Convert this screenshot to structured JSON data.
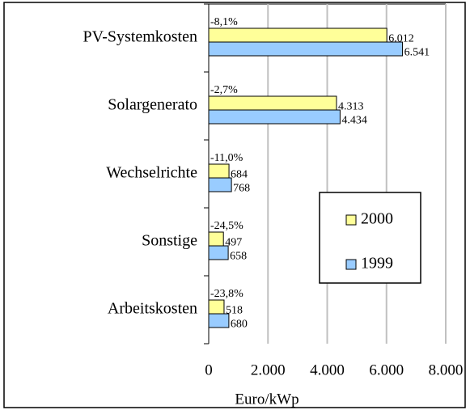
{
  "chart_data": {
    "type": "hbar",
    "categories": [
      "PV-Systemkosten",
      "Solargenerato",
      "Wechselrichte",
      "Sonstige",
      "Arbeitskosten"
    ],
    "series": [
      {
        "name": "2000",
        "color": "#ffff99",
        "values": [
          6012,
          4313,
          684,
          497,
          518
        ],
        "value_labels": [
          "6.012",
          "4.313",
          "684",
          "497",
          "518"
        ]
      },
      {
        "name": "1999",
        "color": "#99ccff",
        "values": [
          6541,
          4434,
          768,
          658,
          680
        ],
        "value_labels": [
          "6.541",
          "4.434",
          "768",
          "658",
          "680"
        ]
      }
    ],
    "annotations": [
      "-8,1%",
      "-2,7%",
      "-11,0%",
      "-24,5%",
      "-23,8%"
    ],
    "xlabel": "Euro/kWp",
    "xlim": [
      0,
      8000
    ],
    "xticks": [
      0,
      {
        "value": 2000,
        "label": "2.000"
      },
      {
        "value": 4000,
        "label": "4.000"
      },
      {
        "value": 6000,
        "label": "6.000"
      },
      {
        "value": 8000,
        "label": "8.000"
      }
    ],
    "grid": true
  }
}
